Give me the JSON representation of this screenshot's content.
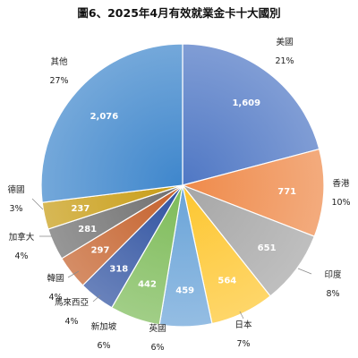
{
  "title": "圖6、2025年4月有效就業金卡十大國別",
  "chart_data": {
    "type": "pie",
    "title": "圖6、2025年4月有效就業金卡十大國別",
    "grid": false,
    "legend": "none",
    "slices": [
      {
        "name": "美國",
        "value": 1609,
        "percent": "21%",
        "color": "#4f77c4"
      },
      {
        "name": "香港",
        "value": 771,
        "percent": "10%",
        "color": "#ef8a4a"
      },
      {
        "name": "印度",
        "value": 651,
        "percent": "8%",
        "color": "#a6a6a6"
      },
      {
        "name": "日本",
        "value": 564,
        "percent": "7%",
        "color": "#fdc62f"
      },
      {
        "name": "英國",
        "value": 459,
        "percent": "6%",
        "color": "#6aa4d8"
      },
      {
        "name": "新加坡",
        "value": 442,
        "percent": "6%",
        "color": "#7dbb58"
      },
      {
        "name": "馬來西亞",
        "value": 318,
        "percent": "4%",
        "color": "#2f52a0"
      },
      {
        "name": "韓國",
        "value": 297,
        "percent": "4%",
        "color": "#c4602a"
      },
      {
        "name": "加拿大",
        "value": 281,
        "percent": "4%",
        "color": "#6f6f6f"
      },
      {
        "name": "德國",
        "value": 237,
        "percent": "3%",
        "color": "#c89c14"
      },
      {
        "name": "其他",
        "value": 2076,
        "percent": "27%",
        "color": "#3e86cc"
      }
    ]
  }
}
